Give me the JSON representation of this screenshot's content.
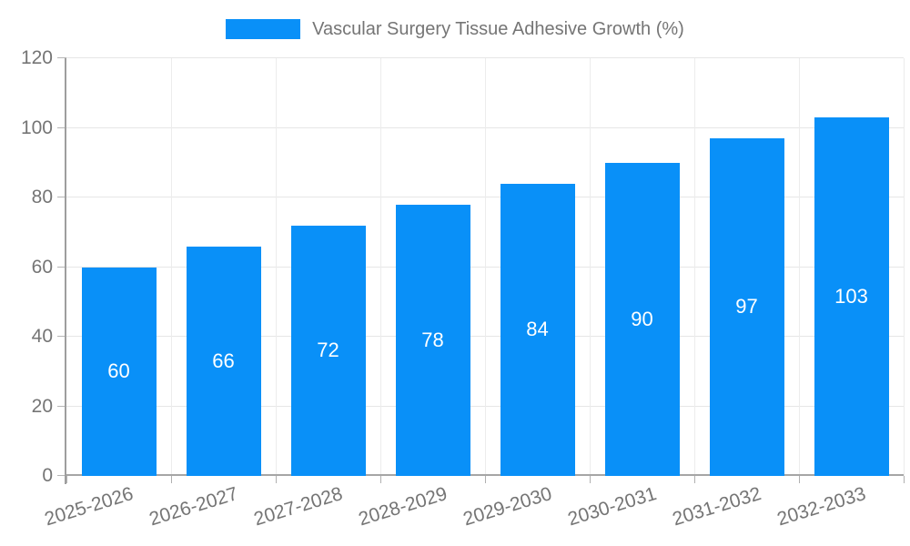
{
  "chart_data": {
    "type": "bar",
    "title": "Vascular Surgery Tissue Adhesive Growth (%)",
    "categories": [
      "2025-2026",
      "2026-2027",
      "2027-2028",
      "2028-2029",
      "2029-2030",
      "2030-2031",
      "2031-2032",
      "2032-2033"
    ],
    "values": [
      60,
      66,
      72,
      78,
      84,
      90,
      97,
      103
    ],
    "xlabel": "",
    "ylabel": "",
    "ylim": [
      0,
      120
    ],
    "yticks": [
      0,
      20,
      40,
      60,
      80,
      100,
      120
    ],
    "grid": true,
    "legend_position": "top",
    "bar_color": "#0990f8",
    "value_label_color": "#ffffff",
    "axis_text_color": "#757575",
    "gridline_color": "#e6e6e6",
    "axis_line_color": "#9e9e9e"
  }
}
